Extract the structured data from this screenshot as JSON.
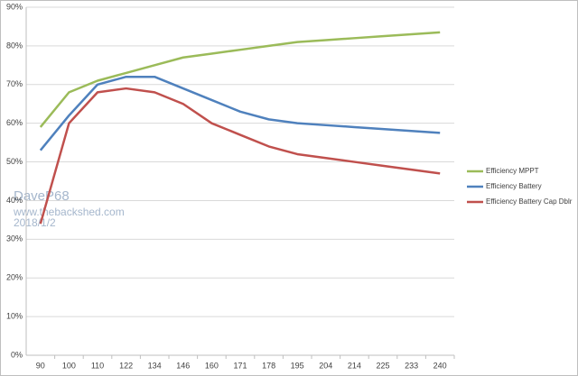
{
  "chart_data": {
    "type": "line",
    "categories": [
      90,
      100,
      110,
      122,
      134,
      146,
      160,
      171,
      178,
      195,
      204,
      214,
      225,
      233,
      240
    ],
    "series": [
      {
        "name": "Efficiency MPPT",
        "color": "#9bbb59",
        "values": [
          59,
          68,
          71,
          73,
          75,
          77,
          78,
          79,
          80,
          81,
          81.5,
          82,
          82.5,
          83,
          83.5
        ]
      },
      {
        "name": "Efficiency Battery",
        "color": "#4f81bd",
        "values": [
          53,
          62,
          70,
          72,
          72,
          69,
          66,
          63,
          61,
          60,
          59.5,
          59,
          58.5,
          58,
          57.5
        ]
      },
      {
        "name": "Efficiency Battery Cap Dblr",
        "color": "#c0504d",
        "values": [
          34,
          60,
          68,
          69,
          68,
          65,
          60,
          57,
          54,
          52,
          51,
          50,
          49,
          48,
          47
        ]
      }
    ],
    "ylim": [
      0,
      90
    ],
    "yticks": [
      {
        "value": 0,
        "label": "0%"
      },
      {
        "value": 10,
        "label": "10%"
      },
      {
        "value": 20,
        "label": "20%"
      },
      {
        "value": 30,
        "label": "30%"
      },
      {
        "value": 40,
        "label": "40%"
      },
      {
        "value": 50,
        "label": "50%"
      },
      {
        "value": 60,
        "label": "60%"
      },
      {
        "value": 70,
        "label": "70%"
      },
      {
        "value": 80,
        "label": "80%"
      },
      {
        "value": 90,
        "label": "90%"
      }
    ],
    "grid": true,
    "legend": "right",
    "annotations": [
      "DaveP68",
      "www.thebackshed.com",
      "2018/1/2"
    ]
  }
}
